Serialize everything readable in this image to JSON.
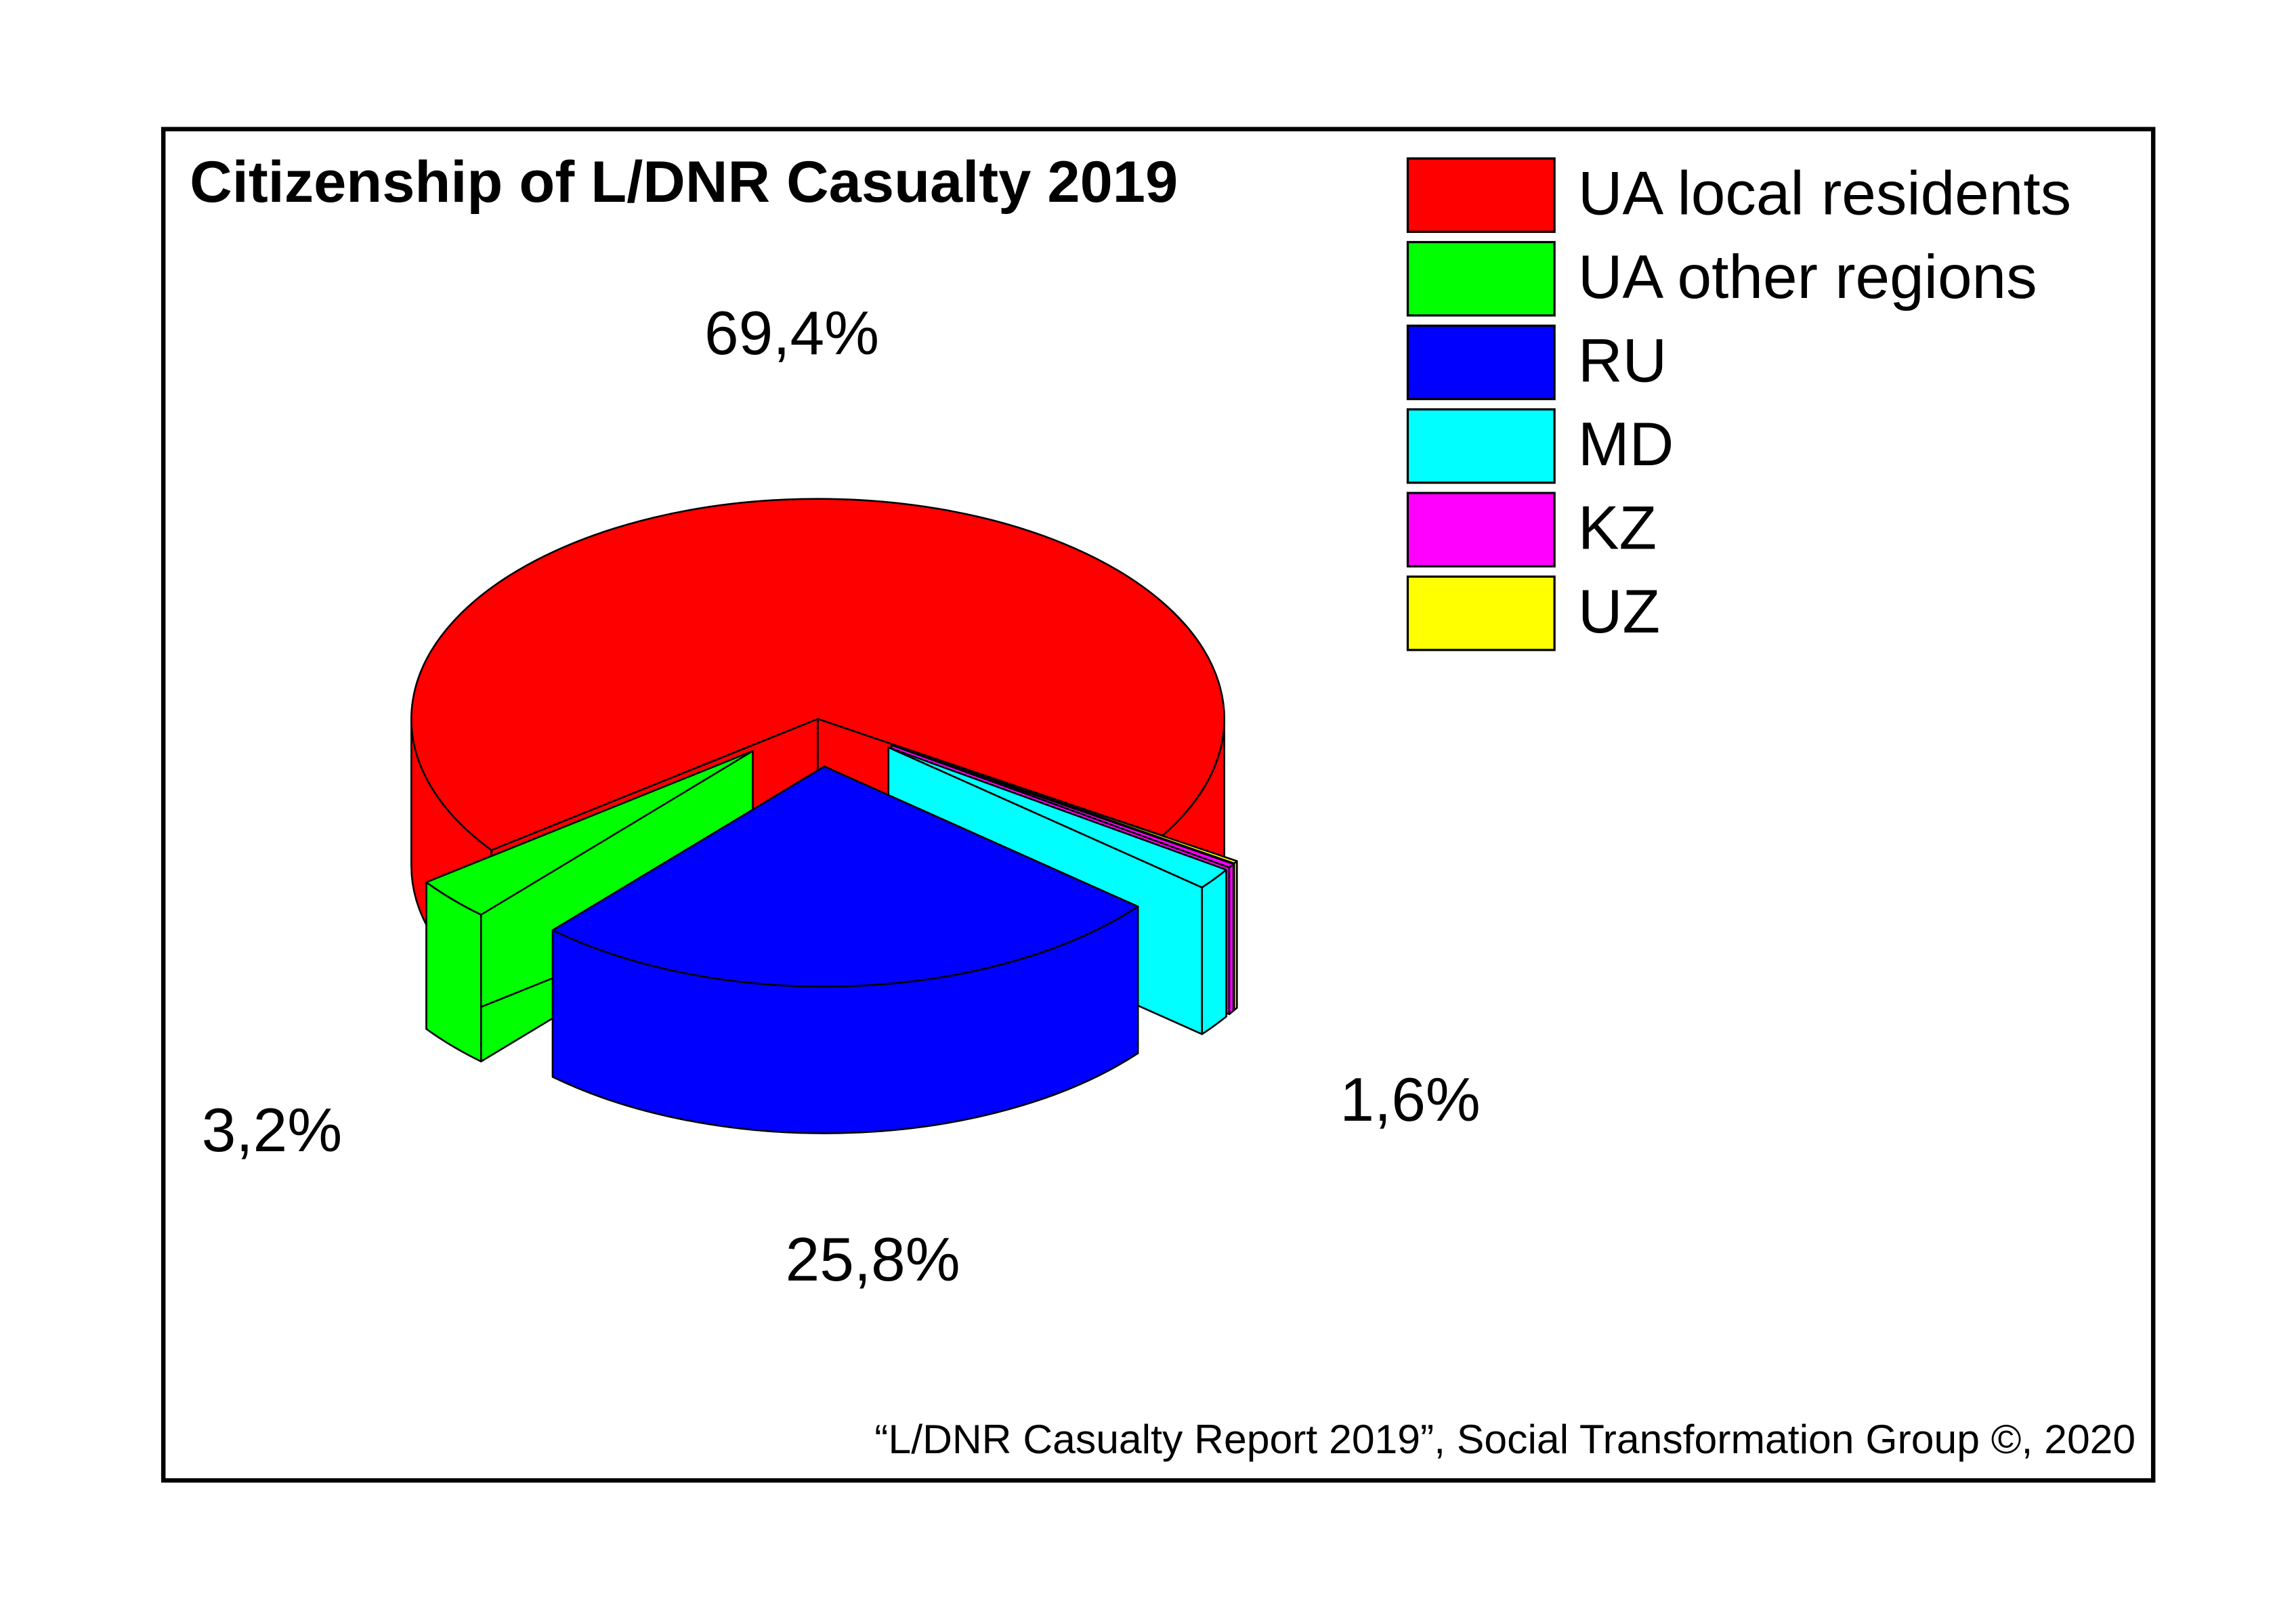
{
  "chart_data": {
    "type": "pie3d",
    "title": "Citizenship of L/DNR Casualty 2019",
    "source": "“L/DNR Casualty Report 2019”, Social Transformation Group ©, 2020",
    "categories": [
      "UA local residents",
      "UA other regions",
      "RU",
      "MD",
      "KZ",
      "UZ"
    ],
    "values": [
      69.4,
      3.2,
      25.8,
      1.6,
      0.3,
      0.2
    ],
    "value_labels": [
      "69,4%",
      "3,2%",
      "25,8%",
      "1,6%",
      null,
      null
    ],
    "colors": [
      "#ff0000",
      "#00ff00",
      "#0000ff",
      "#00ffff",
      "#ff00ff",
      "#ffff00"
    ],
    "legend": "upper right"
  }
}
